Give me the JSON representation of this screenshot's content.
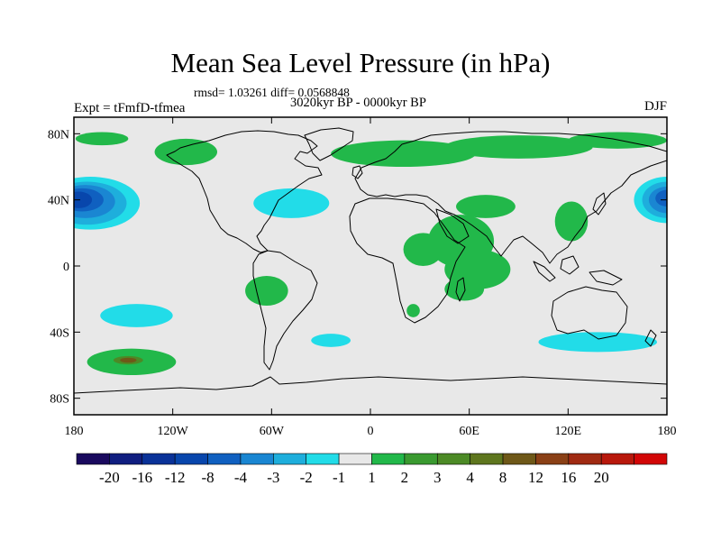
{
  "header": {
    "title": "Mean Sea Level Pressure (in hPa)",
    "stats": "rmsd= 1.03261 diff= 0.0568848",
    "period": "3020kyr BP - 0000kyr BP",
    "experiment": "Expt = tFmfD-tfmea",
    "season": "DJF"
  },
  "axes": {
    "lat_ticks": [
      {
        "lat": 80,
        "label": "80N"
      },
      {
        "lat": 40,
        "label": "40N"
      },
      {
        "lat": 0,
        "label": "0"
      },
      {
        "lat": -40,
        "label": "40S"
      },
      {
        "lat": -80,
        "label": "80S"
      }
    ],
    "lon_ticks": [
      {
        "lon": -180,
        "label": "180"
      },
      {
        "lon": -120,
        "label": "120W"
      },
      {
        "lon": -60,
        "label": "60W"
      },
      {
        "lon": 0,
        "label": "0"
      },
      {
        "lon": 60,
        "label": "60E"
      },
      {
        "lon": 120,
        "label": "120E"
      },
      {
        "lon": 180,
        "label": "180"
      }
    ]
  },
  "colorbar": {
    "colors": [
      "#1a0a5e",
      "#101e80",
      "#0a3298",
      "#0846ac",
      "#1060c0",
      "#1a86d2",
      "#1eaedc",
      "#22dce8",
      "#e8e8e8",
      "#22b84a",
      "#3a9a30",
      "#4c8a26",
      "#5e761e",
      "#6e5818",
      "#8a4016",
      "#a02a12",
      "#b8180c",
      "#d20606"
    ],
    "labels": [
      "-20",
      "-16",
      "-12",
      "-8",
      "-4",
      "-3",
      "-2",
      "-1",
      "1",
      "2",
      "3",
      "4",
      "8",
      "12",
      "16",
      "20"
    ]
  },
  "map": {
    "background": "#e8e8e8",
    "anomalies": [
      {
        "name": "north-pacific-low-west",
        "level": "-20",
        "shells": [
          {
            "color": "#22dce8",
            "cx": -170,
            "cy": 38,
            "rx": 30,
            "ry": 16
          },
          {
            "color": "#1eaedc",
            "cx": -172,
            "cy": 38,
            "rx": 24,
            "ry": 13
          },
          {
            "color": "#1a86d2",
            "cx": -173,
            "cy": 39,
            "rx": 18,
            "ry": 10
          },
          {
            "color": "#1060c0",
            "cx": -175,
            "cy": 40,
            "rx": 13,
            "ry": 7
          },
          {
            "color": "#0846ac",
            "cx": -177,
            "cy": 40,
            "rx": 8,
            "ry": 5
          }
        ]
      },
      {
        "name": "north-pacific-low-east",
        "level": "-20",
        "shells": [
          {
            "color": "#22dce8",
            "cx": 180,
            "cy": 40,
            "rx": 20,
            "ry": 14
          },
          {
            "color": "#1eaedc",
            "cx": 180,
            "cy": 40,
            "rx": 15,
            "ry": 11
          },
          {
            "color": "#1a86d2",
            "cx": 180,
            "cy": 40,
            "rx": 11,
            "ry": 8
          },
          {
            "color": "#1060c0",
            "cx": 180,
            "cy": 41,
            "rx": 7,
            "ry": 5
          }
        ]
      },
      {
        "name": "north-atlantic-negative",
        "level": "-1",
        "shells": [
          {
            "color": "#22dce8",
            "cx": -48,
            "cy": 38,
            "rx": 23,
            "ry": 9
          }
        ]
      },
      {
        "name": "south-pacific-negative",
        "level": "-1",
        "shells": [
          {
            "color": "#22dce8",
            "cx": -142,
            "cy": -30,
            "rx": 22,
            "ry": 7
          }
        ]
      },
      {
        "name": "south-atlantic-negative",
        "level": "-1",
        "shells": [
          {
            "color": "#22dce8",
            "cx": -24,
            "cy": -45,
            "rx": 12,
            "ry": 4
          }
        ]
      },
      {
        "name": "southern-ocean-negative",
        "level": "-1",
        "shells": [
          {
            "color": "#22dce8",
            "cx": 138,
            "cy": -46,
            "rx": 36,
            "ry": 6
          }
        ]
      },
      {
        "name": "south-pacific-positive",
        "level": "4",
        "shells": [
          {
            "color": "#22b84a",
            "cx": -145,
            "cy": -58,
            "rx": 27,
            "ry": 8
          },
          {
            "color": "#4c8a26",
            "cx": -147,
            "cy": -57,
            "rx": 9,
            "ry": 2.5
          },
          {
            "color": "#6e5818",
            "cx": -147,
            "cy": -57,
            "rx": 5,
            "ry": 1.5
          }
        ]
      },
      {
        "name": "south-america-positive",
        "level": "1",
        "shells": [
          {
            "color": "#22b84a",
            "cx": -63,
            "cy": -15,
            "rx": 13,
            "ry": 9
          }
        ]
      },
      {
        "name": "arctic-positive-west",
        "level": "1",
        "shells": [
          {
            "color": "#22b84a",
            "cx": -163,
            "cy": 77,
            "rx": 16,
            "ry": 4
          },
          {
            "color": "#22b84a",
            "cx": -112,
            "cy": 69,
            "rx": 19,
            "ry": 8
          }
        ]
      },
      {
        "name": "arctic-positive-east",
        "level": "1",
        "shells": [
          {
            "color": "#22b84a",
            "cx": 20,
            "cy": 68,
            "rx": 44,
            "ry": 8
          },
          {
            "color": "#22b84a",
            "cx": 90,
            "cy": 72,
            "rx": 45,
            "ry": 7
          },
          {
            "color": "#22b84a",
            "cx": 150,
            "cy": 76,
            "rx": 30,
            "ry": 5
          }
        ]
      },
      {
        "name": "africa-asia-positive",
        "level": "1",
        "shells": [
          {
            "color": "#22b84a",
            "cx": 70,
            "cy": 36,
            "rx": 18,
            "ry": 7
          },
          {
            "color": "#22b84a",
            "cx": 55,
            "cy": 15,
            "rx": 20,
            "ry": 16
          },
          {
            "color": "#22b84a",
            "cx": 32,
            "cy": 10,
            "rx": 12,
            "ry": 10
          },
          {
            "color": "#22b84a",
            "cx": 65,
            "cy": -2,
            "rx": 20,
            "ry": 12
          },
          {
            "color": "#22b84a",
            "cx": 57,
            "cy": -14,
            "rx": 12,
            "ry": 7
          },
          {
            "color": "#22b84a",
            "cx": 26,
            "cy": -27,
            "rx": 4,
            "ry": 4
          }
        ]
      },
      {
        "name": "east-asia-positive",
        "level": "1",
        "shells": [
          {
            "color": "#22b84a",
            "cx": 122,
            "cy": 27,
            "rx": 10,
            "ry": 12
          }
        ]
      }
    ]
  }
}
